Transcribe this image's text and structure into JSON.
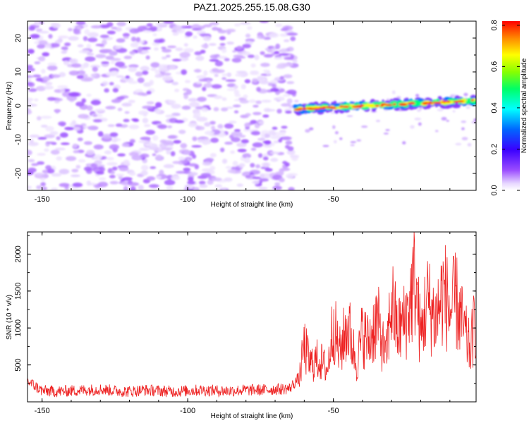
{
  "chart_data": [
    {
      "type": "heatmap",
      "title": "PAZ1.2025.255.15.08.G30",
      "xlabel": "Height of straight line (km)",
      "ylabel": "Frequency (Hz)",
      "xlim": [
        -155,
        -1
      ],
      "ylim": [
        -25,
        25
      ],
      "xticks": [
        -150,
        -100,
        -50
      ],
      "xtick_labels": [
        "-150",
        "-100",
        "-50"
      ],
      "yticks": [
        -20,
        -10,
        0,
        10,
        20
      ],
      "ytick_labels": [
        "-20",
        "-10",
        "0",
        "10",
        "20"
      ],
      "colorbar": {
        "label": "Normalized spectral amplitude",
        "range": [
          0.0,
          0.82
        ],
        "ticks": [
          0.0,
          0.2,
          0.4,
          0.6,
          0.8
        ],
        "tick_labels": [
          "0.0",
          "0.2",
          "0.4",
          "0.6",
          "0.8"
        ],
        "colormap": "rainbow (white-violet-blue-cyan-green-yellow-orange-red)"
      },
      "regions": [
        {
          "description": "diffuse low-amplitude noise",
          "x_range": [
            -155,
            -63
          ],
          "freq_range": [
            -25,
            25
          ],
          "amplitude_range": [
            0.02,
            0.1
          ]
        },
        {
          "description": "coherent signal band",
          "x_range": [
            -63,
            -1
          ],
          "freq_center_start": -1,
          "freq_center_end": 1.5,
          "amplitude_range": [
            0.3,
            0.8
          ]
        }
      ]
    },
    {
      "type": "line",
      "xlabel": "Height of straight line (km)",
      "ylabel": "SNR (10 * v/v)",
      "xlim": [
        -155,
        -1
      ],
      "ylim": [
        0,
        2300
      ],
      "xticks": [
        -150,
        -100,
        -50
      ],
      "xtick_labels": [
        "-150",
        "-100",
        "-50"
      ],
      "yticks": [
        500,
        1000,
        1500,
        2000
      ],
      "ytick_labels": [
        "500",
        "1000",
        "1500",
        "2000"
      ],
      "series": [
        {
          "name": "SNR",
          "color": "#ee2222",
          "x": [
            -155,
            -150,
            -145,
            -140,
            -135,
            -130,
            -125,
            -120,
            -115,
            -110,
            -105,
            -100,
            -95,
            -90,
            -85,
            -80,
            -75,
            -70,
            -65,
            -62,
            -60,
            -58,
            -55,
            -52,
            -50,
            -48,
            -45,
            -42,
            -40,
            -38,
            -35,
            -32,
            -30,
            -28,
            -25,
            -22,
            -20,
            -18,
            -15,
            -12,
            -10,
            -8,
            -5,
            -3,
            -1
          ],
          "y": [
            280,
            150,
            140,
            150,
            160,
            170,
            150,
            140,
            160,
            150,
            140,
            150,
            160,
            150,
            150,
            160,
            160,
            170,
            180,
            320,
            1050,
            700,
            800,
            600,
            1500,
            900,
            1450,
            700,
            1300,
            1100,
            1550,
            800,
            1900,
            1300,
            1550,
            2280,
            1200,
            1900,
            1550,
            2100,
            1650,
            1900,
            1300,
            950,
            1650
          ]
        }
      ]
    }
  ]
}
